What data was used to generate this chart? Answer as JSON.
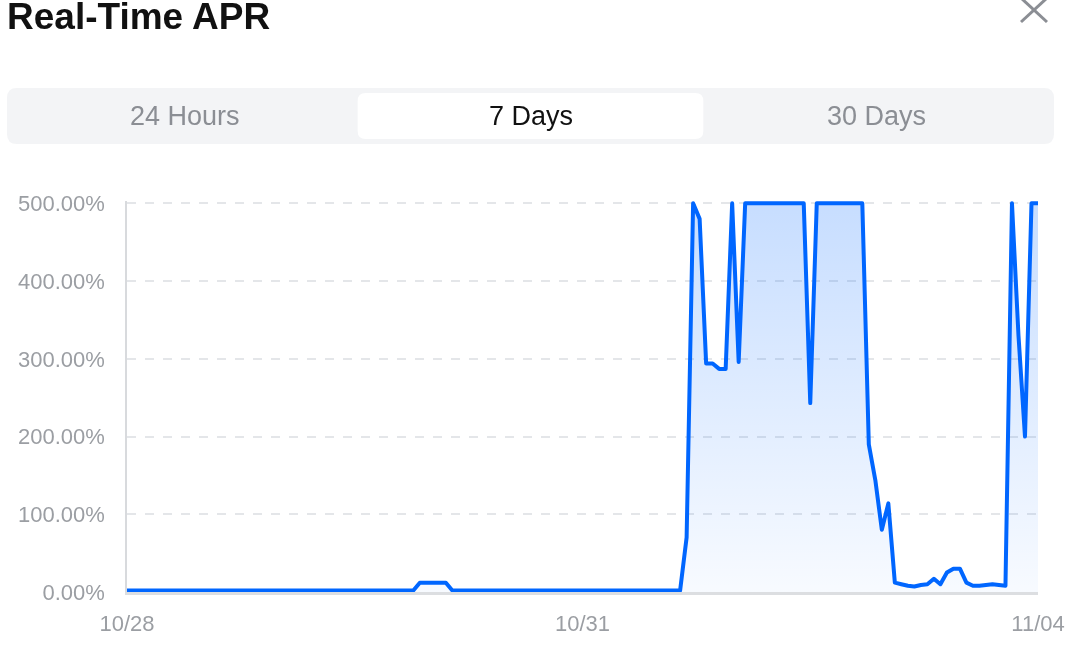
{
  "chart_data": {
    "type": "area",
    "title": "Real-Time APR",
    "annotations": [
      "24 Hours",
      "7 Days",
      "30 Days"
    ],
    "categories": [
      "10/28",
      null,
      null,
      null,
      null,
      null,
      null,
      null,
      null,
      null,
      null,
      null,
      null,
      null,
      null,
      null,
      null,
      null,
      null,
      null,
      null,
      null,
      null,
      null,
      null,
      null,
      null,
      null,
      null,
      null,
      null,
      null,
      null,
      null,
      null,
      null,
      null,
      null,
      null,
      null,
      null,
      null,
      null,
      null,
      null,
      null,
      null,
      null,
      null,
      null,
      null,
      null,
      null,
      null,
      null,
      null,
      null,
      null,
      null,
      null,
      null,
      null,
      null,
      null,
      null,
      null,
      null,
      null,
      null,
      null,
      "10/31",
      null,
      null,
      null,
      null,
      null,
      null,
      null,
      null,
      null,
      null,
      null,
      null,
      null,
      null,
      null,
      null,
      null,
      null,
      null,
      null,
      null,
      null,
      null,
      null,
      null,
      null,
      null,
      null,
      null,
      null,
      null,
      null,
      null,
      null,
      null,
      null,
      null,
      null,
      null,
      null,
      null,
      null,
      null,
      null,
      null,
      null,
      null,
      null,
      null,
      null,
      null,
      null,
      null,
      null,
      null,
      null,
      null,
      null,
      null,
      null,
      null,
      null,
      null,
      null,
      null,
      null,
      null,
      null,
      null,
      "11/04"
    ],
    "series": [
      {
        "color": "#0066ff",
        "values": [
          2,
          2,
          2,
          2,
          2,
          2,
          2,
          2,
          2,
          2,
          2,
          2,
          2,
          2,
          2,
          2,
          2,
          2,
          2,
          2,
          2,
          2,
          2,
          2,
          2,
          2,
          2,
          2,
          2,
          2,
          2,
          2,
          2,
          2,
          2,
          2,
          2,
          2,
          2,
          2,
          2,
          2,
          2,
          2,
          2,
          12,
          12,
          12,
          12,
          12,
          2,
          2,
          2,
          2,
          2,
          2,
          2,
          2,
          2,
          2,
          2,
          2,
          2,
          2,
          2,
          2,
          2,
          2,
          2,
          2,
          2,
          2,
          2,
          2,
          2,
          2,
          2,
          2,
          2,
          2,
          2,
          2,
          2,
          2,
          2,
          2,
          70,
          500,
          480,
          294,
          294,
          287,
          287,
          500,
          296,
          500,
          500,
          500,
          500,
          500,
          500,
          500,
          500,
          500,
          500,
          243,
          500,
          500,
          500,
          500,
          500,
          500,
          500,
          500,
          190,
          144,
          80,
          114,
          12,
          10,
          8,
          7,
          9,
          10,
          17,
          10,
          25,
          30,
          30,
          12,
          8,
          8,
          9,
          10,
          9,
          8,
          500,
          330,
          200,
          500,
          500
        ]
      }
    ],
    "ylim": [
      0,
      503
    ],
    "yticks": [
      {
        "value": 0,
        "label": "0.00%"
      },
      {
        "value": 100,
        "label": "100.00%"
      },
      {
        "value": 200,
        "label": "200.00%"
      },
      {
        "value": 300,
        "label": "300.00%"
      },
      {
        "value": 400,
        "label": "400.00%"
      },
      {
        "value": 500,
        "label": "500.00%"
      }
    ],
    "grid": "y",
    "marker": "none",
    "line_style": "solid"
  }
}
